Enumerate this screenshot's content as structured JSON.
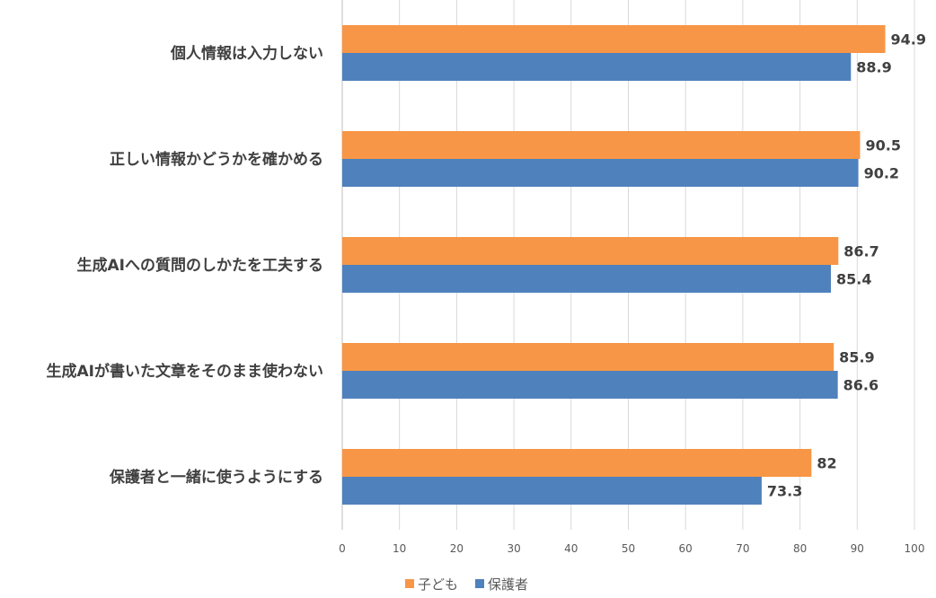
{
  "chart_data": {
    "type": "bar",
    "orientation": "horizontal",
    "categories": [
      "個人情報は入力しない",
      "正しい情報かどうかを確かめる",
      "生成AIへの質問のしかたを工夫する",
      "生成AIが書いた文章をそのまま使わない",
      "保護者と一緒に使うようにする"
    ],
    "series": [
      {
        "name": "子ども",
        "values": [
          94.9,
          90.5,
          86.7,
          85.9,
          82
        ],
        "labels": [
          "94.9",
          "90.5",
          "86.7",
          "85.9",
          "82"
        ],
        "color": "#f79646"
      },
      {
        "name": "保護者",
        "values": [
          88.9,
          90.2,
          85.4,
          86.6,
          73.3
        ],
        "labels": [
          "88.9",
          "90.2",
          "85.4",
          "86.6",
          "73.3"
        ],
        "color": "#4f81bd"
      }
    ],
    "xlim": [
      0,
      100
    ],
    "ticks": [
      "0",
      "10",
      "20",
      "30",
      "40",
      "50",
      "60",
      "70",
      "80",
      "90",
      "100"
    ],
    "grid": true,
    "legend_position": "bottom"
  }
}
